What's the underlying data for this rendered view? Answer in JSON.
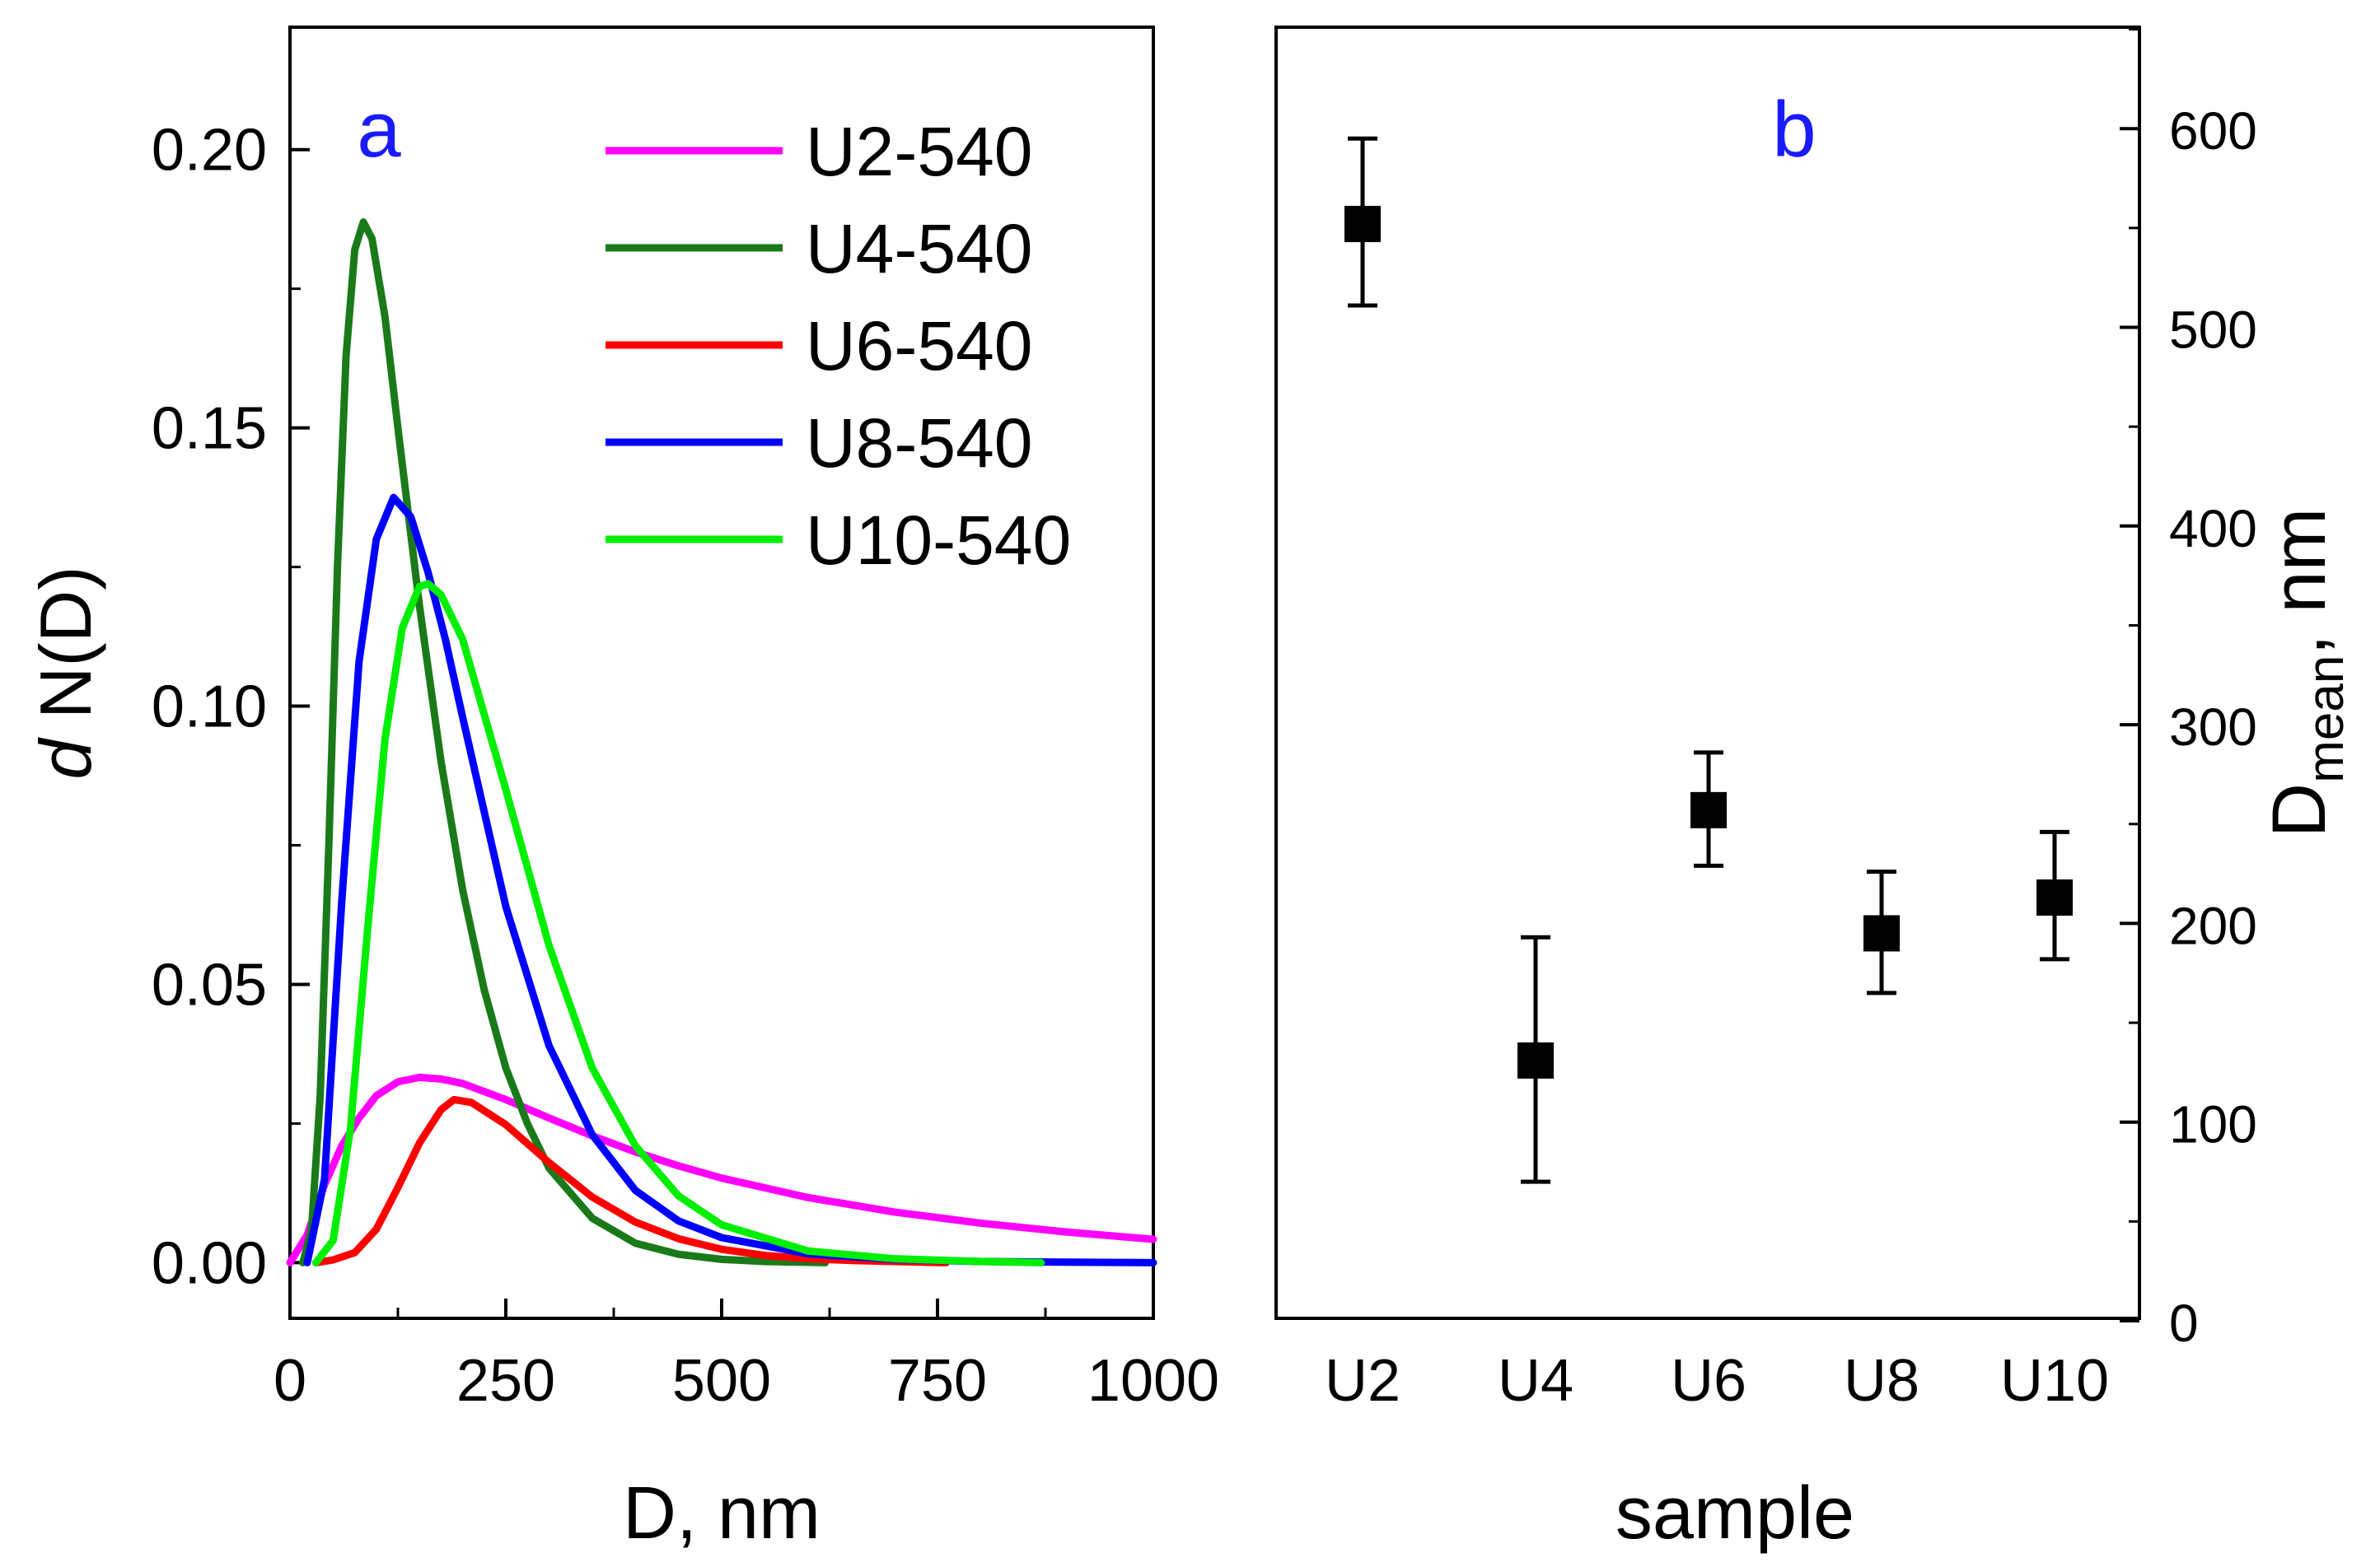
{
  "chart_data": [
    {
      "type": "line",
      "panel_label": "a",
      "xlabel": "D, nm",
      "ylabel_italic": "d",
      "ylabel": " N(D)",
      "xlim": [
        0,
        1000
      ],
      "ylim": [
        -0.01,
        0.222
      ],
      "xticks": [
        0,
        250,
        500,
        750,
        1000
      ],
      "xtick_labels": [
        "0",
        "250",
        "500",
        "750",
        "1000"
      ],
      "yticks": [
        0.0,
        0.05,
        0.1,
        0.15,
        0.2
      ],
      "ytick_labels": [
        "0.00",
        "0.05",
        "0.10",
        "0.15",
        "0.20"
      ],
      "legend_position": "top-right",
      "grid": false,
      "series": [
        {
          "name": "U2-540",
          "color": "#ff00ff",
          "x": [
            0,
            20,
            40,
            60,
            80,
            100,
            125,
            150,
            175,
            200,
            250,
            300,
            350,
            400,
            450,
            500,
            600,
            700,
            800,
            900,
            1000
          ],
          "y": [
            0.0,
            0.005,
            0.014,
            0.021,
            0.026,
            0.03,
            0.0325,
            0.0333,
            0.033,
            0.0322,
            0.0293,
            0.026,
            0.0228,
            0.0199,
            0.0174,
            0.0152,
            0.0117,
            0.0091,
            0.0071,
            0.0055,
            0.0042
          ]
        },
        {
          "name": "U4-540",
          "color": "#1a7a1a",
          "x": [
            15,
            25,
            35,
            45,
            55,
            65,
            75,
            85,
            95,
            110,
            125,
            150,
            175,
            200,
            225,
            250,
            275,
            300,
            350,
            400,
            450,
            500,
            550,
            620
          ],
          "y": [
            0.0,
            0.006,
            0.03,
            0.075,
            0.125,
            0.163,
            0.182,
            0.187,
            0.184,
            0.17,
            0.15,
            0.118,
            0.09,
            0.067,
            0.049,
            0.035,
            0.025,
            0.017,
            0.008,
            0.0035,
            0.0015,
            0.0006,
            0.0002,
            0.0
          ]
        },
        {
          "name": "U6-540",
          "color": "#ff0000",
          "x": [
            30,
            50,
            75,
            100,
            125,
            150,
            175,
            190,
            210,
            250,
            300,
            350,
            400,
            450,
            500,
            550,
            600,
            650,
            700,
            760
          ],
          "y": [
            0.0,
            0.0005,
            0.0018,
            0.006,
            0.0135,
            0.0215,
            0.0275,
            0.0293,
            0.0288,
            0.0248,
            0.018,
            0.0118,
            0.0073,
            0.0043,
            0.0024,
            0.0013,
            0.0007,
            0.0004,
            0.0002,
            0.0
          ]
        },
        {
          "name": "U8-540",
          "color": "#0000ff",
          "x": [
            20,
            40,
            60,
            80,
            100,
            120,
            140,
            160,
            180,
            200,
            250,
            300,
            350,
            400,
            450,
            500,
            600,
            700,
            800,
            1000
          ],
          "y": [
            0.0,
            0.015,
            0.065,
            0.108,
            0.13,
            0.1375,
            0.134,
            0.124,
            0.112,
            0.098,
            0.064,
            0.039,
            0.023,
            0.013,
            0.0075,
            0.0045,
            0.0016,
            0.0006,
            0.0002,
            0.0
          ]
        },
        {
          "name": "U10-540",
          "color": "#00ee00",
          "x": [
            30,
            50,
            70,
            90,
            110,
            130,
            150,
            160,
            175,
            200,
            250,
            300,
            350,
            400,
            450,
            500,
            600,
            700,
            800,
            870
          ],
          "y": [
            0.0,
            0.004,
            0.024,
            0.06,
            0.094,
            0.114,
            0.1215,
            0.122,
            0.12,
            0.112,
            0.085,
            0.057,
            0.035,
            0.021,
            0.012,
            0.0068,
            0.0021,
            0.0007,
            0.0002,
            0.0
          ]
        }
      ]
    },
    {
      "type": "scatter",
      "panel_label": "b",
      "xlabel": "sample",
      "ylabel_main": "D",
      "ylabel_sub": "mean",
      "ylabel_tail": ", nm",
      "ylim": [
        0,
        600
      ],
      "yticks": [
        0,
        100,
        200,
        300,
        400,
        500,
        600
      ],
      "ytick_labels": [
        "0",
        "100",
        "200",
        "300",
        "400",
        "500",
        "600"
      ],
      "y_axis_side": "right",
      "grid": false,
      "categories": [
        "U2",
        "U4",
        "U6",
        "U8",
        "U10"
      ],
      "values": [
        552,
        131,
        257,
        195,
        213
      ],
      "err_low": [
        511,
        70,
        229,
        165,
        182
      ],
      "err_high": [
        595,
        193,
        286,
        226,
        246
      ]
    }
  ]
}
